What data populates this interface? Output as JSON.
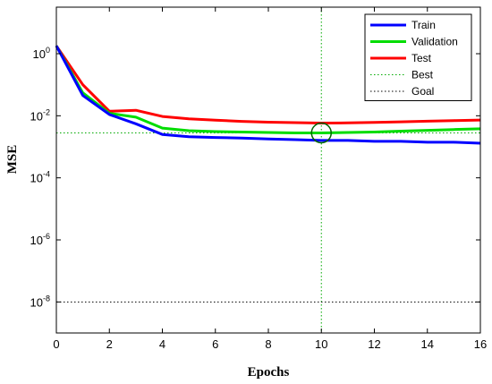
{
  "chart_data": {
    "type": "line",
    "title": "",
    "xlabel": "Epochs",
    "ylabel": "MSE",
    "xlim": [
      0,
      16
    ],
    "ylim_log10": [
      -9,
      1.5
    ],
    "yscale": "log",
    "grid": false,
    "legend_position": "top-right",
    "x_ticks": [
      0,
      2,
      4,
      6,
      8,
      10,
      12,
      14,
      16
    ],
    "y_ticks_log10": [
      0,
      -2,
      -4,
      -6,
      -8
    ],
    "series": [
      {
        "name": "Train",
        "color": "#0000ff",
        "x": [
          0,
          1,
          2,
          3,
          4,
          5,
          6,
          7,
          8,
          9,
          10,
          11,
          12,
          13,
          14,
          15,
          16
        ],
        "y": [
          1.8,
          0.045,
          0.011,
          0.0055,
          0.0025,
          0.0021,
          0.002,
          0.0019,
          0.0018,
          0.0017,
          0.0016,
          0.0016,
          0.0015,
          0.0015,
          0.0014,
          0.0014,
          0.0013
        ]
      },
      {
        "name": "Validation",
        "color": "#00dd00",
        "x": [
          0,
          1,
          2,
          3,
          4,
          5,
          6,
          7,
          8,
          9,
          10,
          11,
          12,
          13,
          14,
          15,
          16
        ],
        "y": [
          1.8,
          0.055,
          0.012,
          0.009,
          0.004,
          0.0033,
          0.0031,
          0.003,
          0.0029,
          0.0028,
          0.0028,
          0.0029,
          0.003,
          0.0032,
          0.0034,
          0.0036,
          0.0038
        ]
      },
      {
        "name": "Test",
        "color": "#ff0000",
        "x": [
          0,
          1,
          2,
          3,
          4,
          5,
          6,
          7,
          8,
          9,
          10,
          11,
          12,
          13,
          14,
          15,
          16
        ],
        "y": [
          1.8,
          0.1,
          0.014,
          0.015,
          0.0095,
          0.008,
          0.0072,
          0.0066,
          0.0062,
          0.006,
          0.0058,
          0.0059,
          0.0061,
          0.0064,
          0.0067,
          0.007,
          0.0073
        ]
      }
    ],
    "best": {
      "name": "Best",
      "epoch": 10,
      "value": 0.0028,
      "color": "#00aa00"
    },
    "goal": {
      "name": "Goal",
      "value": 1e-08,
      "color": "#000000"
    }
  }
}
